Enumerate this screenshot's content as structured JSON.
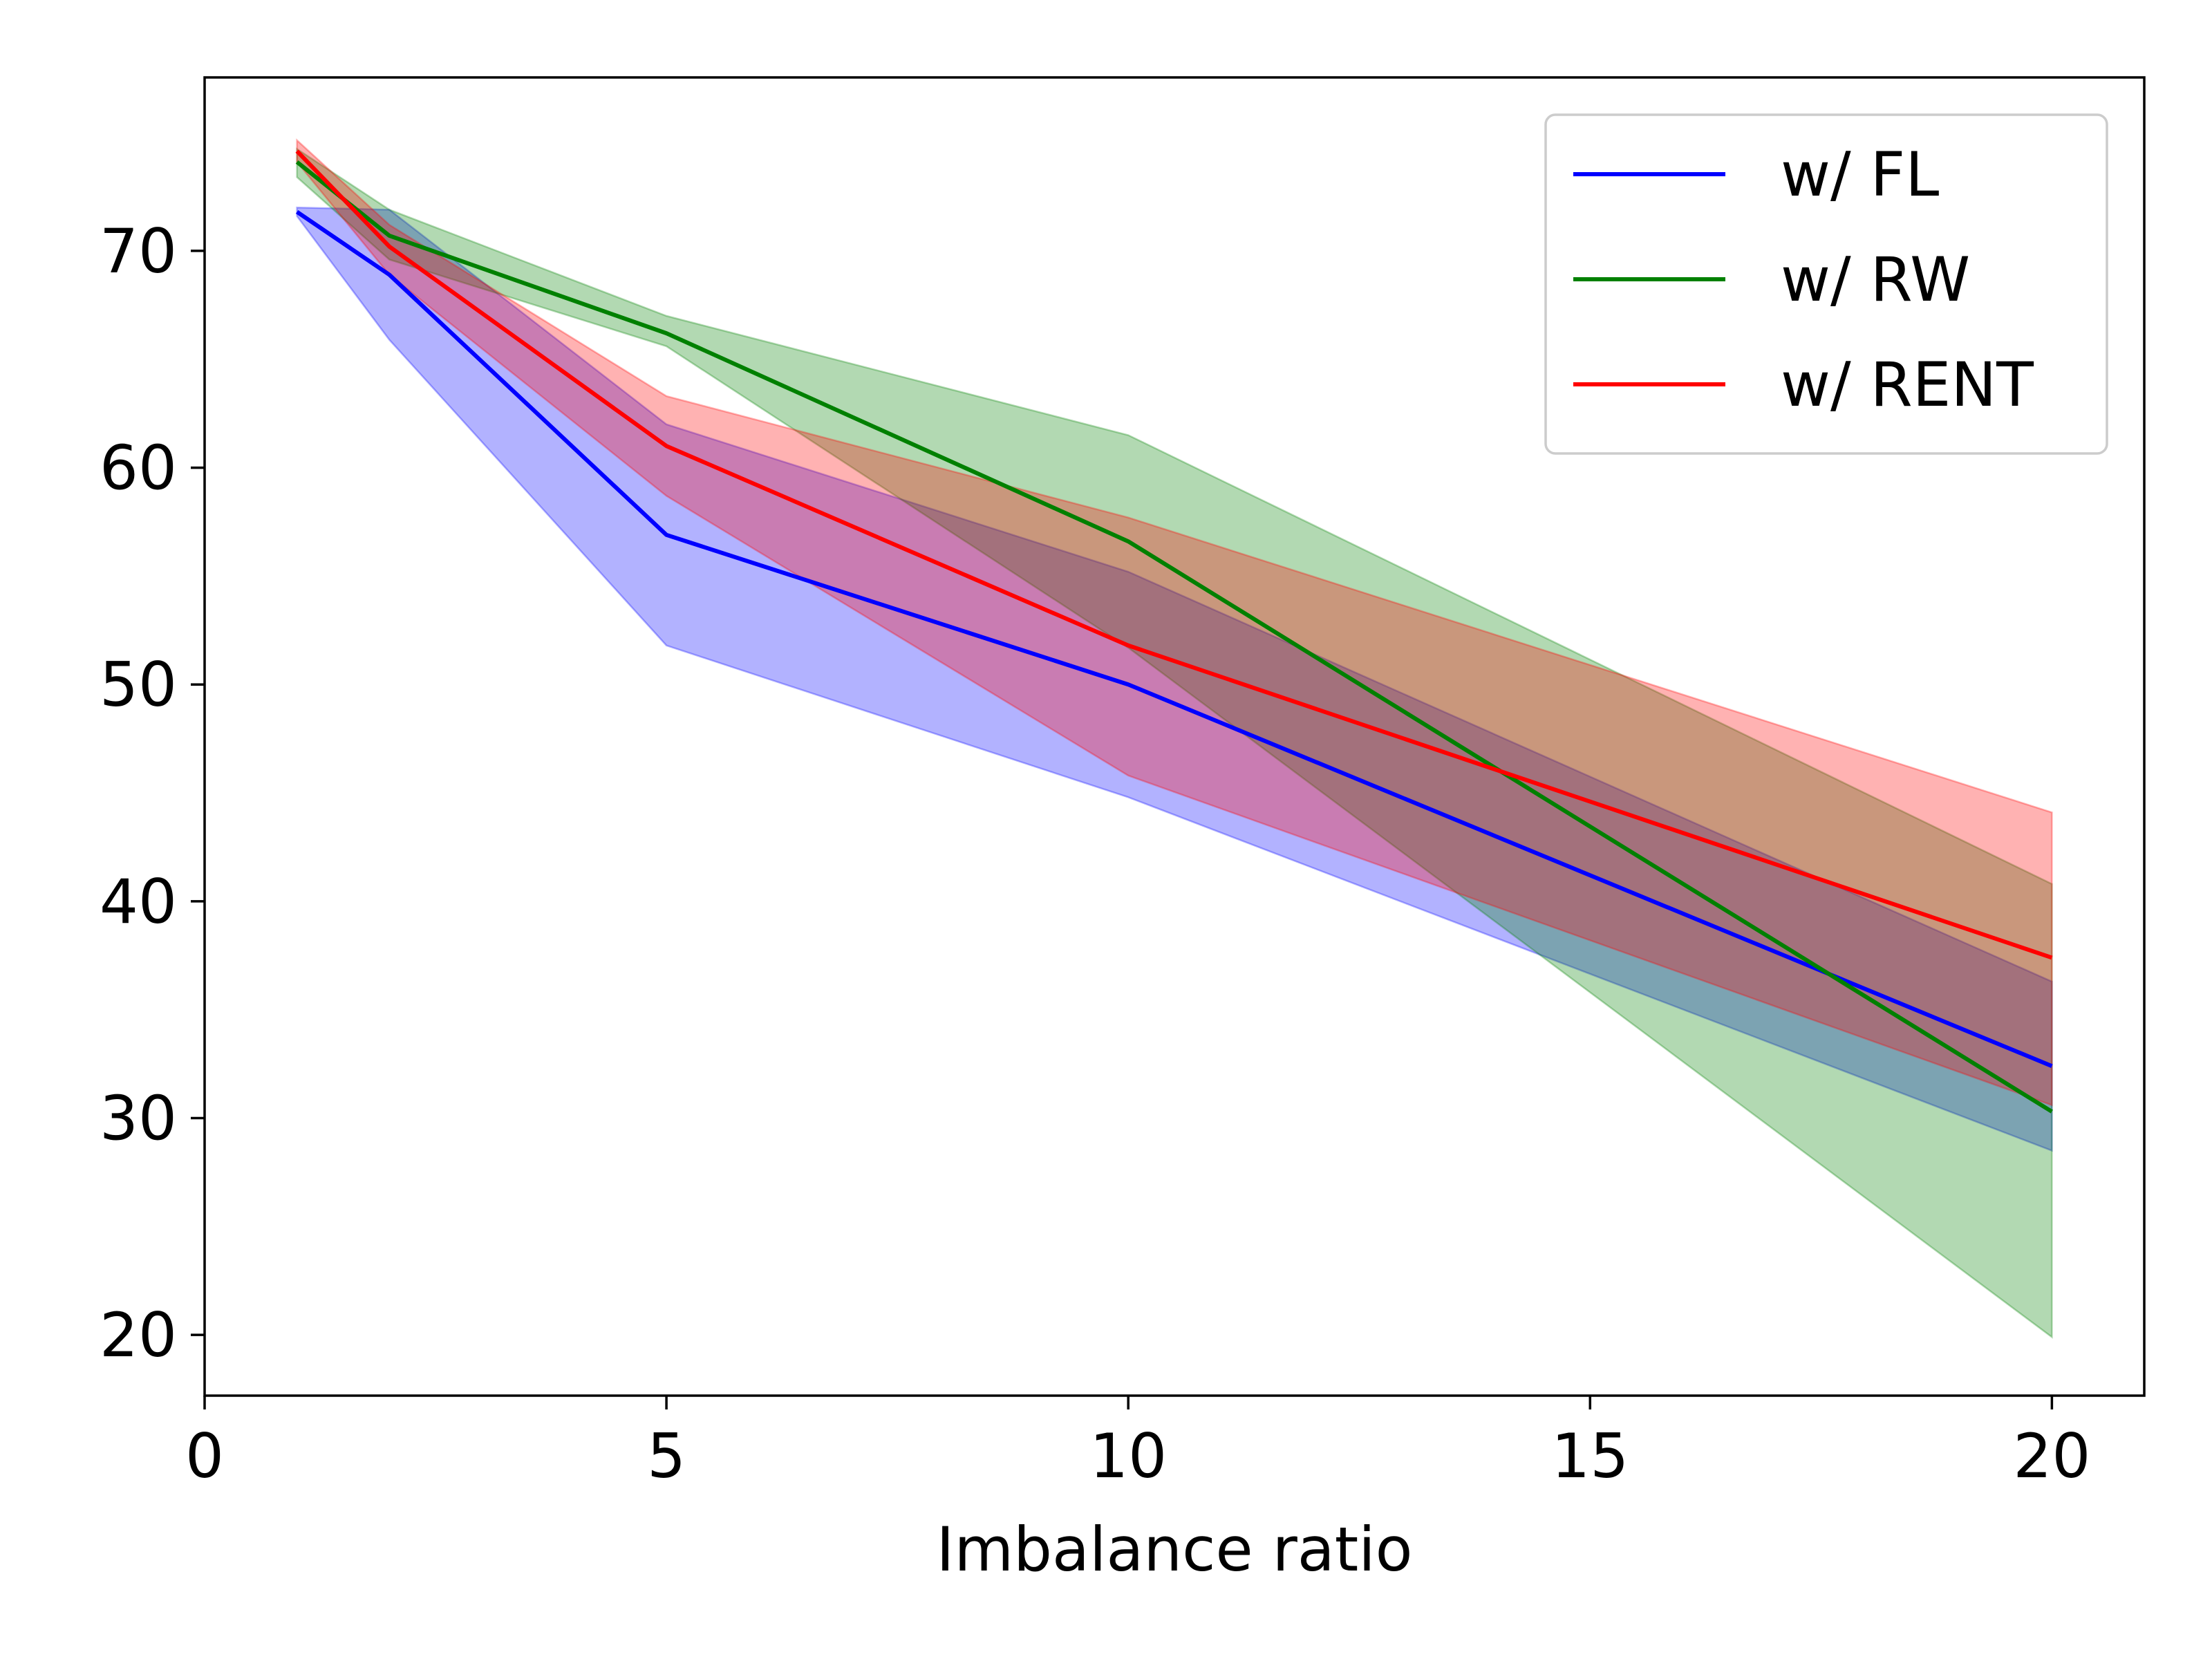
{
  "chart_data": {
    "type": "line",
    "title": "",
    "xlabel": "Imbalance ratio",
    "ylabel": "",
    "xlim": [
      0,
      21
    ],
    "ylim": [
      17.2,
      78.0
    ],
    "xticks": [
      0,
      5,
      10,
      15,
      20
    ],
    "yticks": [
      20,
      30,
      40,
      50,
      60,
      70
    ],
    "grid": false,
    "legend_position": "upper right",
    "x": [
      1,
      2,
      5,
      10,
      20
    ],
    "series": [
      {
        "name": "w/ FL",
        "color": "#0000ff",
        "values": [
          71.8,
          68.9,
          56.9,
          50.0,
          32.4
        ],
        "lower": [
          71.6,
          65.9,
          51.8,
          44.8,
          28.5
        ],
        "upper": [
          72.0,
          71.9,
          62.0,
          55.2,
          36.3
        ]
      },
      {
        "name": "w/ RW",
        "color": "#008000",
        "values": [
          74.1,
          70.7,
          66.2,
          56.6,
          30.3
        ],
        "lower": [
          73.4,
          69.6,
          65.6,
          51.7,
          19.9
        ],
        "upper": [
          74.7,
          71.9,
          67.0,
          61.5,
          40.8
        ]
      },
      {
        "name": "w/ RENT",
        "color": "#ff0000",
        "values": [
          74.6,
          70.2,
          61.0,
          51.8,
          37.4
        ],
        "lower": [
          74.1,
          68.9,
          58.7,
          45.8,
          30.6
        ],
        "upper": [
          75.1,
          71.2,
          63.3,
          57.7,
          44.1
        ]
      }
    ]
  }
}
